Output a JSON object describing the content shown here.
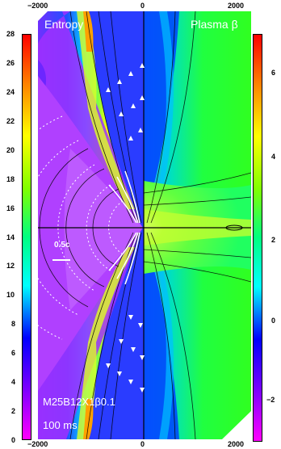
{
  "panels": {
    "left_title": "Entropy",
    "right_title": "Plasma β"
  },
  "annotations": {
    "model_name": "M25B12X1β0.1",
    "time": "100 ms",
    "velocity_scale": "0.5c"
  },
  "top_axis": {
    "ticks": [
      "−2000",
      "0",
      "2000"
    ]
  },
  "bottom_axis": {
    "ticks": [
      "−2000",
      "0",
      "2000"
    ]
  },
  "left_colorbar": {
    "ticks": [
      "28",
      "26",
      "24",
      "22",
      "20",
      "18",
      "16",
      "14",
      "12",
      "10",
      "8",
      "6",
      "4",
      "2",
      "0"
    ],
    "colors": [
      "#ff00ff",
      "#8000ff",
      "#0000ff",
      "#00ffff",
      "#00ff80",
      "#80ff00",
      "#ffff00",
      "#ff8000",
      "#ff0000"
    ]
  },
  "right_colorbar": {
    "ticks": [
      "6",
      "4",
      "2",
      "0",
      "−2"
    ],
    "colors": [
      "#ff00ff",
      "#8000ff",
      "#0000ff",
      "#00ffff",
      "#00ff80",
      "#80ff00",
      "#ffff00",
      "#ff8000",
      "#ff0000"
    ]
  }
}
